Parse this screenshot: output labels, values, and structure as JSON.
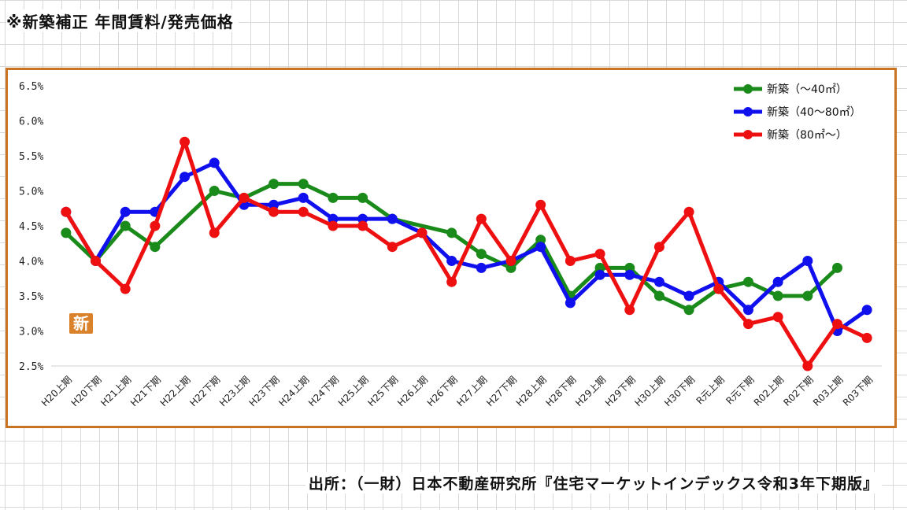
{
  "page": {
    "title": "※新築補正 年間賃料/発売価格",
    "source": "出所：（一財）日本不動産研究所『住宅マーケットインデックス令和3年下期版』",
    "badge": "新"
  },
  "chart_data": {
    "type": "line",
    "title": "",
    "xlabel": "",
    "ylabel": "",
    "ylim": [
      2.5,
      6.5
    ],
    "yticks": [
      "6.5%",
      "6.0%",
      "5.5%",
      "5.0%",
      "4.5%",
      "4.0%",
      "3.5%",
      "3.0%",
      "2.5%"
    ],
    "grid": "horizontal-baseline-only",
    "legend_position": "top-right",
    "categories": [
      "H20上期",
      "H20下期",
      "H21上期",
      "H21下期",
      "H22上期",
      "H22下期",
      "H23上期",
      "H23下期",
      "H24上期",
      "H24下期",
      "H25上期",
      "H25下期",
      "H26上期",
      "H26下期",
      "H27上期",
      "H27下期",
      "H28上期",
      "H28下期",
      "H29上期",
      "H29下期",
      "H30上期",
      "H30下期",
      "R元上期",
      "R元下期",
      "R02上期",
      "R02下期",
      "R03上期",
      "R03下期"
    ],
    "series": [
      {
        "name": "新築（～40㎡）",
        "color": "#1a8a1a",
        "values": [
          4.4,
          4.0,
          4.5,
          4.2,
          null,
          5.0,
          4.9,
          5.1,
          5.1,
          4.9,
          4.9,
          4.6,
          null,
          4.4,
          4.1,
          3.9,
          4.3,
          3.5,
          3.9,
          3.9,
          3.5,
          3.3,
          3.6,
          3.7,
          3.5,
          3.5,
          3.9,
          null
        ]
      },
      {
        "name": "新築（40～80㎡）",
        "color": "#1010ee",
        "values": [
          4.7,
          4.0,
          4.7,
          4.7,
          5.2,
          5.4,
          4.8,
          4.8,
          4.9,
          4.6,
          4.6,
          4.6,
          4.4,
          4.0,
          3.9,
          4.0,
          4.2,
          3.4,
          3.8,
          3.8,
          3.7,
          3.5,
          3.7,
          3.3,
          3.7,
          4.0,
          3.0,
          3.3
        ]
      },
      {
        "name": "新築（80㎡～）",
        "color": "#ee1010",
        "values": [
          4.7,
          4.0,
          3.6,
          4.5,
          5.7,
          4.4,
          4.9,
          4.7,
          4.7,
          4.5,
          4.5,
          4.2,
          4.4,
          3.7,
          4.6,
          4.0,
          4.8,
          4.0,
          4.1,
          3.3,
          4.2,
          4.7,
          3.6,
          3.1,
          3.2,
          2.5,
          3.1,
          2.9
        ]
      }
    ]
  }
}
